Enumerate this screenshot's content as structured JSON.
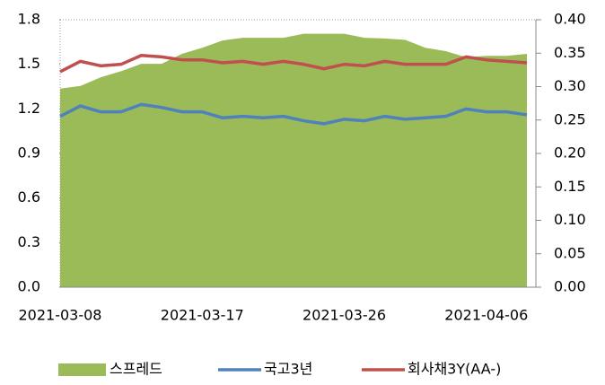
{
  "chart_data": {
    "type": "line",
    "categories": [
      "2021-03-08",
      null,
      null,
      null,
      null,
      null,
      null,
      "2021-03-17",
      null,
      null,
      null,
      null,
      null,
      null,
      "2021-03-26",
      null,
      null,
      null,
      null,
      null,
      null,
      "2021-04-06",
      null,
      null
    ],
    "series": [
      {
        "name": "스프레드",
        "type": "area",
        "axis": "y2",
        "color": "#9bbb59",
        "values": [
          0.297,
          0.301,
          0.314,
          0.323,
          0.334,
          0.334,
          0.349,
          0.358,
          0.369,
          0.373,
          0.373,
          0.373,
          0.379,
          0.379,
          0.379,
          0.373,
          0.372,
          0.37,
          0.358,
          0.353,
          0.344,
          0.346,
          0.346,
          0.349
        ]
      },
      {
        "name": "국고3년",
        "color": "#4f81bd",
        "values": [
          1.15,
          1.22,
          1.18,
          1.18,
          1.23,
          1.21,
          1.18,
          1.18,
          1.14,
          1.15,
          1.14,
          1.15,
          1.12,
          1.1,
          1.13,
          1.12,
          1.15,
          1.13,
          1.14,
          1.15,
          1.2,
          1.18,
          1.18,
          1.16
        ]
      },
      {
        "name": "회사채3Y(AA-)",
        "color": "#c0504d",
        "values": [
          1.45,
          1.52,
          1.49,
          1.5,
          1.56,
          1.55,
          1.53,
          1.53,
          1.51,
          1.52,
          1.5,
          1.52,
          1.5,
          1.47,
          1.5,
          1.49,
          1.52,
          1.5,
          1.5,
          1.5,
          1.55,
          1.53,
          1.52,
          1.51
        ]
      }
    ],
    "ylim": [
      0,
      1.8
    ],
    "yticks": [
      {
        "value": 0,
        "label": "0.0"
      },
      0.3,
      0.6,
      0.9,
      1.2,
      1.5,
      1.8
    ],
    "y2lim": [
      0,
      0.4
    ],
    "y2ticks": [
      {
        "value": 0,
        "label": "0.00"
      },
      {
        "value": 0.05,
        "label": "0.05"
      },
      {
        "value": 0.1,
        "label": "0.10"
      },
      {
        "value": 0.15,
        "label": "0.15"
      },
      {
        "value": 0.2,
        "label": "0.20"
      },
      {
        "value": 0.25,
        "label": "0.25"
      },
      {
        "value": 0.3,
        "label": "0.30"
      },
      {
        "value": 0.35,
        "label": "0.35"
      },
      {
        "value": 0.4,
        "label": "0.40"
      }
    ],
    "legend": "bottom"
  }
}
